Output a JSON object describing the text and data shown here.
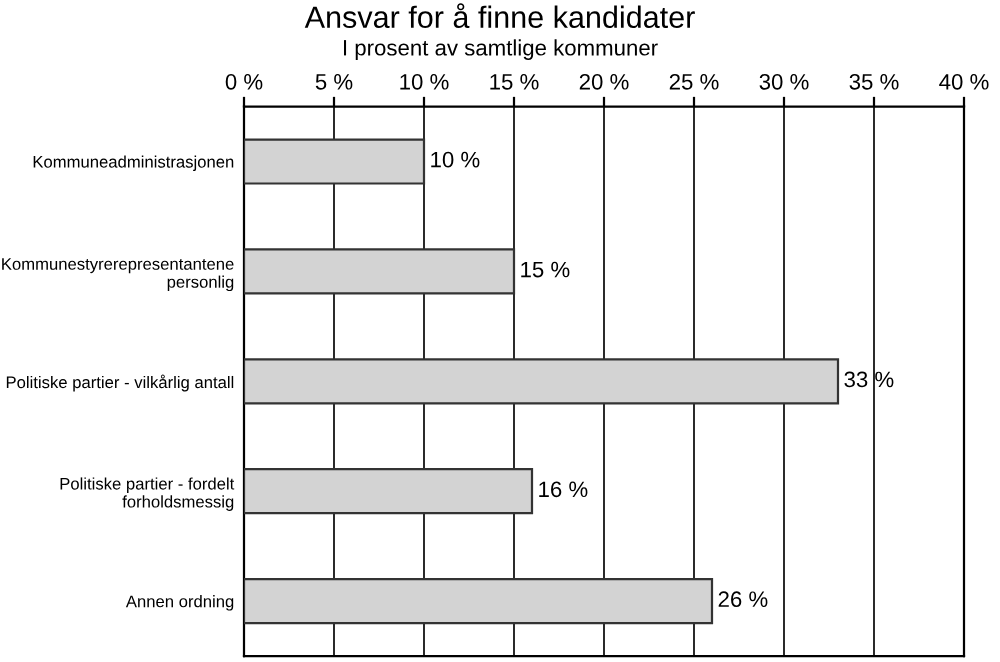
{
  "chart_data": {
    "type": "bar",
    "orientation": "horizontal",
    "title": "Ansvar for å finne kandidater",
    "subtitle": "I prosent av samtlige kommuner",
    "categories": [
      "Kommuneadministrasjonen",
      "Kommunestyrerepresentantene\npersonlig",
      "Politiske partier - vilkårlig antall",
      "Politiske partier - fordelt\nforholdsmessig",
      "Annen ordning"
    ],
    "values": [
      10,
      15,
      33,
      16,
      26
    ],
    "value_labels": [
      "10 %",
      "15 %",
      "33 %",
      "16 %",
      "26 %"
    ],
    "color": "#d3d3d3",
    "xlim": [
      0,
      40
    ],
    "xticks": [
      {
        "value": 0,
        "label": "0 %"
      },
      {
        "value": 5,
        "label": "5 %"
      },
      {
        "value": 10,
        "label": "10 %"
      },
      {
        "value": 15,
        "label": "15 %"
      },
      {
        "value": 20,
        "label": "20 %"
      },
      {
        "value": 25,
        "label": "25 %"
      },
      {
        "value": 30,
        "label": "30 %"
      },
      {
        "value": 35,
        "label": "35 %"
      },
      {
        "value": 40,
        "label": "40 %"
      }
    ],
    "grid": "x",
    "legend": false
  }
}
